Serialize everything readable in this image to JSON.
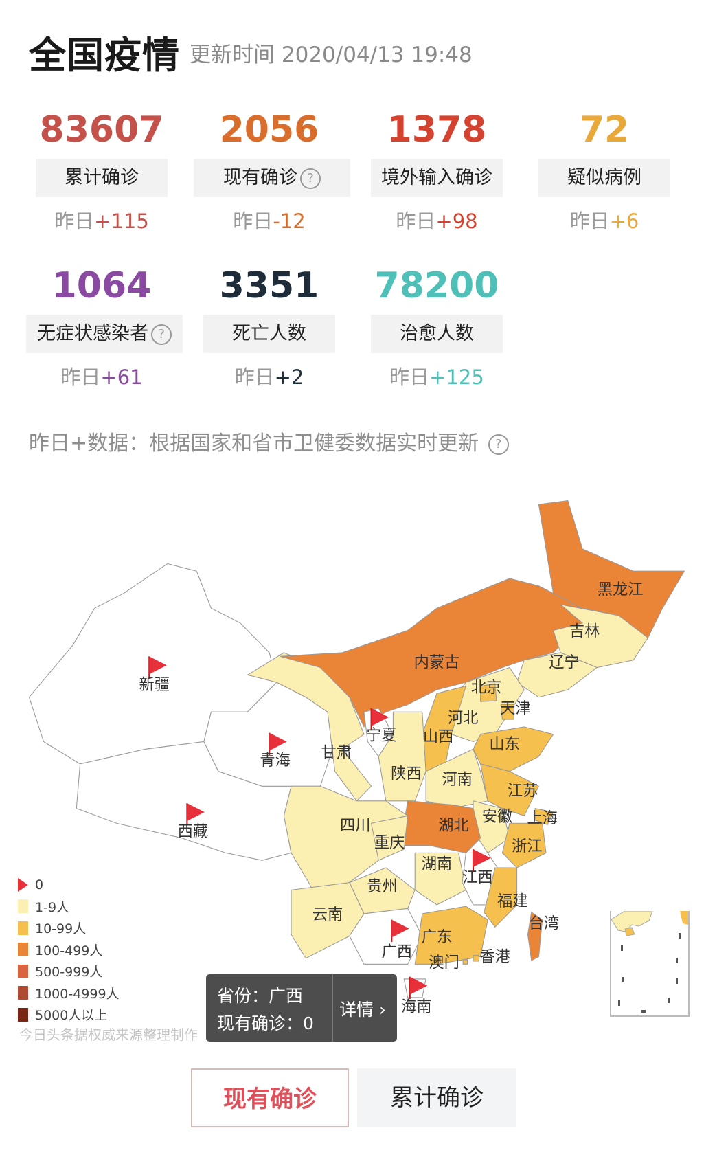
{
  "header": {
    "title": "全国疫情",
    "updated": "更新时间 2020/04/13 19:48"
  },
  "stats": [
    {
      "value": "83607",
      "label": "累计确诊",
      "delta_prefix": "昨日",
      "delta": "+115",
      "color": "#c4514a",
      "help": false
    },
    {
      "value": "2056",
      "label": "现有确诊",
      "delta_prefix": "昨日",
      "delta": "-12",
      "color": "#d96d2c",
      "help": true
    },
    {
      "value": "1378",
      "label": "境外输入确诊",
      "delta_prefix": "昨日",
      "delta": "+98",
      "color": "#d4432f",
      "help": false
    },
    {
      "value": "72",
      "label": "疑似病例",
      "delta_prefix": "昨日",
      "delta": "+6",
      "color": "#e8a93a",
      "help": false
    },
    {
      "value": "1064",
      "label": "无症状感染者",
      "delta_prefix": "昨日",
      "delta": "+61",
      "color": "#8b4aa2",
      "help": true
    },
    {
      "value": "3351",
      "label": "死亡人数",
      "delta_prefix": "昨日",
      "delta": "+2",
      "color": "#1e2c3a",
      "help": false
    },
    {
      "value": "78200",
      "label": "治愈人数",
      "delta_prefix": "昨日",
      "delta": "+125",
      "color": "#4ec0b8",
      "help": false
    }
  ],
  "help_glyph": "?",
  "note": "昨日+数据：根据国家和省市卫健委数据实时更新",
  "map": {
    "provinces": [
      {
        "name": "新疆",
        "level": 0
      },
      {
        "name": "西藏",
        "level": 0
      },
      {
        "name": "青海",
        "level": 0
      },
      {
        "name": "甘肃",
        "level": 1
      },
      {
        "name": "内蒙古",
        "level": 3
      },
      {
        "name": "黑龙江",
        "level": 3
      },
      {
        "name": "吉林",
        "level": 1
      },
      {
        "name": "辽宁",
        "level": 1
      },
      {
        "name": "河北",
        "level": 1
      },
      {
        "name": "北京",
        "level": 2
      },
      {
        "name": "天津",
        "level": 2
      },
      {
        "name": "山西",
        "level": 2
      },
      {
        "name": "山东",
        "level": 2
      },
      {
        "name": "宁夏",
        "level": 0
      },
      {
        "name": "陕西",
        "level": 1
      },
      {
        "name": "河南",
        "level": 1
      },
      {
        "name": "江苏",
        "level": 2
      },
      {
        "name": "安徽",
        "level": 1
      },
      {
        "name": "上海",
        "level": 2
      },
      {
        "name": "浙江",
        "level": 2
      },
      {
        "name": "湖北",
        "level": 3
      },
      {
        "name": "四川",
        "level": 1
      },
      {
        "name": "重庆",
        "level": 1
      },
      {
        "name": "湖南",
        "level": 1
      },
      {
        "name": "江西",
        "level": 0
      },
      {
        "name": "福建",
        "level": 2
      },
      {
        "name": "贵州",
        "level": 1
      },
      {
        "name": "云南",
        "level": 1
      },
      {
        "name": "广西",
        "level": 0
      },
      {
        "name": "广东",
        "level": 2
      },
      {
        "name": "台湾",
        "level": 3
      },
      {
        "name": "海南",
        "level": 0
      },
      {
        "name": "香港",
        "level": 2
      },
      {
        "name": "澳门",
        "level": 2
      }
    ],
    "legend": [
      {
        "label": "0",
        "color": "#e8303a",
        "flag": true
      },
      {
        "label": "1-9人",
        "color": "#fcefb2"
      },
      {
        "label": "10-99人",
        "color": "#f6c04e"
      },
      {
        "label": "100-499人",
        "color": "#ea8436"
      },
      {
        "label": "500-999人",
        "color": "#d9643f"
      },
      {
        "label": "1000-4999人",
        "color": "#b04b33"
      },
      {
        "label": "5000人以上",
        "color": "#7a2614"
      }
    ],
    "credit": "今日头条据权威来源整理制作",
    "tooltip": {
      "line1": "省份：广西",
      "line2": "现有确诊：0",
      "detail": "详情 ›"
    }
  },
  "buttons": {
    "current": "现有确诊",
    "total": "累计确诊",
    "selected": "current"
  }
}
